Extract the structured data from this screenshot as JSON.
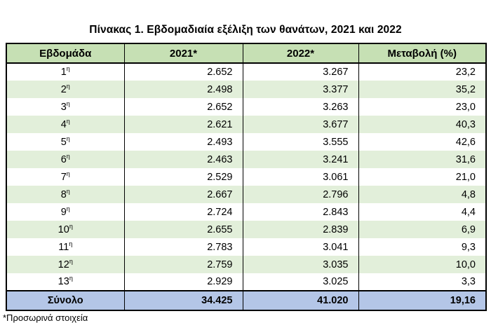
{
  "title": "Πίνακας 1. Εβδομαδιαία εξέλιξη των θανάτων, 2021 και 2022",
  "footnote": "*Προσωρινά στοιχεία",
  "colors": {
    "header_bg": "#c6e0b4",
    "alt_row_bg": "#e2efda",
    "total_row_bg": "#b4c6e7",
    "border": "#000000"
  },
  "table": {
    "headers": [
      "Εβδομάδα",
      "2021*",
      "2022*",
      "Μεταβολή (%)"
    ],
    "week_suffix": "η",
    "rows": [
      {
        "week": "1",
        "sup": "η",
        "v2021": "2.652",
        "v2022": "3.267",
        "change": "23,2"
      },
      {
        "week": "2",
        "sup": "η",
        "v2021": "2.498",
        "v2022": "3.377",
        "change": "35,2"
      },
      {
        "week": "3",
        "sup": "η",
        "v2021": "2.652",
        "v2022": "3.263",
        "change": "23,0"
      },
      {
        "week": "4",
        "sup": "η",
        "v2021": "2.621",
        "v2022": "3.677",
        "change": "40,3"
      },
      {
        "week": "5",
        "sup": "η",
        "v2021": "2.493",
        "v2022": "3.555",
        "change": "42,6"
      },
      {
        "week": "6",
        "sup": "η",
        "v2021": "2.463",
        "v2022": "3.241",
        "change": "31,6"
      },
      {
        "week": "7",
        "sup": "η",
        "v2021": "2.529",
        "v2022": "3.061",
        "change": "21,0"
      },
      {
        "week": "8",
        "sup": "η",
        "v2021": "2.667",
        "v2022": "2.796",
        "change": "4,8"
      },
      {
        "week": "9",
        "sup": "η",
        "v2021": "2.724",
        "v2022": "2.843",
        "change": "4,4"
      },
      {
        "week": "10",
        "sup": "η",
        "v2021": "2.655",
        "v2022": "2.839",
        "change": "6,9"
      },
      {
        "week": "11",
        "sup": "η",
        "v2021": "2.783",
        "v2022": "3.041",
        "change": "9,3"
      },
      {
        "week": "12",
        "sup": "η",
        "v2021": "2.759",
        "v2022": "3.035",
        "change": "10,0"
      },
      {
        "week": "13",
        "sup": "η",
        "v2021": "2.929",
        "v2022": "3.025",
        "change": "3,3"
      }
    ],
    "total": {
      "label": "Σύνολο",
      "v2021": "34.425",
      "v2022": "41.020",
      "change": "19,16"
    }
  }
}
